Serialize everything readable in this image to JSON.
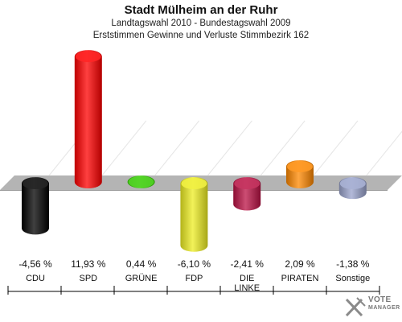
{
  "chart_data": {
    "type": "bar",
    "title": "Stadt Mülheim an der Ruhr",
    "subtitle_1": "Landtagswahl 2010 - Bundestagswahl 2009",
    "subtitle_2": "Erststimmen Gewinne und Verluste Stimmbezirk 162",
    "categories": [
      {
        "line1": "CDU",
        "line2": ""
      },
      {
        "line1": "SPD",
        "line2": ""
      },
      {
        "line1": "GRÜNE",
        "line2": ""
      },
      {
        "line1": "FDP",
        "line2": ""
      },
      {
        "line1": "DIE",
        "line2": "LINKE"
      },
      {
        "line1": "PIRATEN",
        "line2": ""
      },
      {
        "line1": "Sonstige",
        "line2": ""
      }
    ],
    "values": [
      -4.56,
      11.93,
      0.44,
      -6.1,
      -2.41,
      2.09,
      -1.38
    ],
    "value_labels": [
      "-4,56 %",
      "11,93 %",
      "0,44 %",
      "-6,10 %",
      "-2,41 %",
      "2,09 %",
      "-1,38 %"
    ],
    "colors": [
      "#000000",
      "#ff0000",
      "#33cc00",
      "#eeee22",
      "#bb1144",
      "#ff8800",
      "#99a3cc"
    ],
    "baseline": 0,
    "grid": false,
    "legend": "none"
  },
  "watermark": {
    "line1": "VOTE",
    "line2": "MANAGER"
  }
}
